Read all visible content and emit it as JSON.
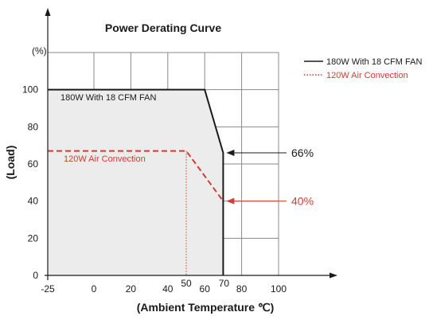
{
  "chart_data": {
    "type": "line",
    "title": "Power Derating Curve",
    "xlabel": "(Ambient Temperature ℃)",
    "ylabel": "(Load)",
    "y_unit": "(%)",
    "xlim": [
      -25,
      100
    ],
    "ylim": [
      0,
      120
    ],
    "x_ticks": [
      -25,
      0,
      20,
      40,
      60,
      80,
      100
    ],
    "y_ticks": [
      0,
      20,
      40,
      60,
      80,
      100
    ],
    "grid": true,
    "legend_position": "top-right",
    "series": [
      {
        "name": "180W With 18 CFM FAN",
        "color": "#1a1a1a",
        "style": "solid",
        "x": [
          -25,
          60,
          70,
          70
        ],
        "y": [
          100,
          100,
          66,
          0
        ]
      },
      {
        "name": "120W Air Convection",
        "color": "#d93a32",
        "style": "dashed",
        "x": [
          -25,
          50,
          70
        ],
        "y": [
          67,
          67,
          40
        ]
      }
    ],
    "annotations": [
      {
        "text": "180W With 18 CFM FAN",
        "color": "#1a1a1a"
      },
      {
        "text": "120W Air Convection",
        "color": "#d93a32"
      },
      {
        "text": "66%",
        "x": 70,
        "y": 66,
        "color": "#1a1a1a"
      },
      {
        "text": "40%",
        "x": 70,
        "y": 40,
        "color": "#d93a32"
      },
      {
        "text": "50",
        "x": 50,
        "color": "#d93a32"
      },
      {
        "text": "70",
        "x": 70,
        "color": "#1a1a1a"
      }
    ],
    "fill_color": "#ececec"
  }
}
